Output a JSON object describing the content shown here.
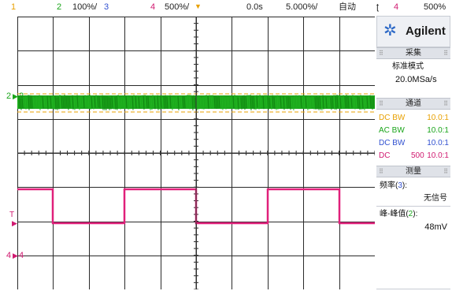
{
  "top_bar": {
    "ch1_num": "1",
    "ch2_num": "2",
    "ch2_scale": "100%/",
    "ch3_num": "3",
    "ch4_num": "4",
    "ch4_scale": "500%/",
    "time_offset": "0.0s",
    "time_scale": "5.000%/",
    "trigger_mode": "自动",
    "trigger_slope": "ʈ",
    "trigger_source": "4",
    "trigger_level": "500%"
  },
  "screen_markers": {
    "ch2_marker": "2",
    "ch2_label": "2",
    "trigger_marker": "T",
    "ch4_marker": "4",
    "ch4_label": "4"
  },
  "panel": {
    "brand": "Agilent",
    "acquire_header": "采集",
    "acquire_mode": "标准模式",
    "sample_rate": "20.0MSa/s",
    "channels_header": "通道",
    "channels": [
      {
        "coupling": "DC BW",
        "offset": "",
        "probe": "10.0:1",
        "color": "#e8a000"
      },
      {
        "coupling": "AC BW",
        "offset": "",
        "probe": "10.0:1",
        "color": "#1aa51a"
      },
      {
        "coupling": "DC BW",
        "offset": "",
        "probe": "10.0:1",
        "color": "#3050d0"
      },
      {
        "coupling": "DC",
        "offset": "500",
        "probe": "10.0:1",
        "color": "#d01a70"
      }
    ],
    "measure_header": "测量",
    "freq_label_pre": "频率(",
    "freq_src": "3",
    "freq_label_post": "):",
    "freq_value": "无信号",
    "pp_label_pre": "峰-峰值(",
    "pp_src": "2",
    "pp_label_post": "):",
    "pp_value": "48mV"
  },
  "colors": {
    "ch1": "#e8a000",
    "ch2": "#1aa51a",
    "ch3": "#3050d0",
    "ch4": "#e0207a",
    "grid": "#333333"
  }
}
